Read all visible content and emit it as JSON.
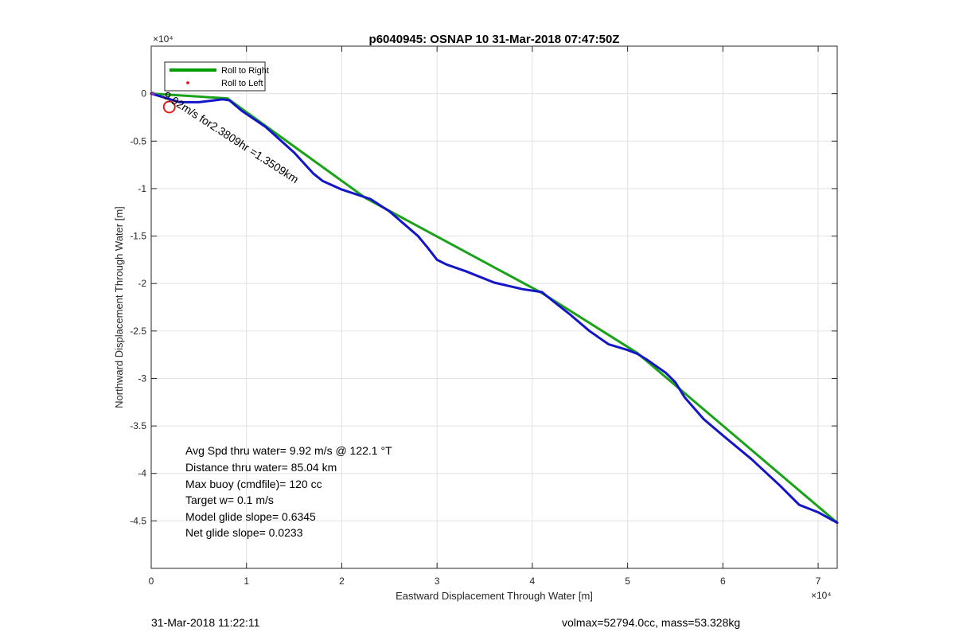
{
  "chart_data": {
    "type": "line",
    "title": "p6040945: OSNAP 10 31-Mar-2018 07:47:50Z",
    "xlabel": "Eastward Displacement Through Water [m]",
    "ylabel": "Northward Displacement Through Water [m]",
    "x_exponent_label": "×10⁴",
    "y_exponent_label": "×10⁴",
    "xlim": [
      0,
      72000
    ],
    "ylim": [
      -50000,
      5000
    ],
    "xticks": [
      0,
      10000,
      20000,
      30000,
      40000,
      50000,
      60000,
      70000
    ],
    "xtick_labels": [
      "0",
      "1",
      "2",
      "3",
      "4",
      "5",
      "6",
      "7"
    ],
    "yticks": [
      0,
      -5000,
      -10000,
      -15000,
      -20000,
      -25000,
      -30000,
      -35000,
      -40000,
      -45000
    ],
    "ytick_labels": [
      "0",
      "-0.5",
      "-1",
      "-1.5",
      "-2",
      "-2.5",
      "-3",
      "-3.5",
      "-4",
      "-4.5"
    ],
    "grid": true,
    "legend_position": "top-left",
    "legend": [
      {
        "label": "Roll to Right",
        "color": "#00a000",
        "style": "line"
      },
      {
        "label": "Roll to Left",
        "color": "#e00000",
        "style": "dot"
      }
    ],
    "series": [
      {
        "name": "Roll to Right",
        "color": "#1aa31a",
        "x": [
          0,
          8000,
          22500,
          41000,
          51000,
          72000
        ],
        "y": [
          0,
          -500,
          -11000,
          -21000,
          -27300,
          -45200
        ]
      },
      {
        "color": "#1515c8",
        "x": [
          0,
          3000,
          5000,
          7500,
          8200,
          9500,
          12000,
          15000,
          17000,
          18000,
          20000,
          23000,
          25000,
          28000,
          29000,
          30000,
          31000,
          33000,
          36000,
          39000,
          41000,
          42000,
          44000,
          46000,
          47000,
          48000,
          50000,
          51000,
          52000,
          54000,
          55000,
          56000,
          58000,
          60000,
          63000,
          66000,
          68000,
          70000,
          72000
        ],
        "y": [
          0,
          -900,
          -900,
          -600,
          -700,
          -1800,
          -3500,
          -6200,
          -8400,
          -9200,
          -10100,
          -11100,
          -12400,
          -15000,
          -16200,
          -17500,
          -18000,
          -18700,
          -19900,
          -20600,
          -20900,
          -21700,
          -23300,
          -25000,
          -25700,
          -26400,
          -27000,
          -27400,
          -28000,
          -29400,
          -30400,
          -32000,
          -34300,
          -36000,
          -38500,
          -41300,
          -43300,
          -44100,
          -45200
        ]
      }
    ],
    "markers": [
      {
        "type": "circle",
        "x": 1900,
        "y": -1400,
        "color": "#e02020"
      }
    ],
    "overlay_label": {
      "text": "9.92m/s for2.3809hr =1.3509km",
      "x": 1200,
      "y": -400,
      "rotation_deg": 33
    },
    "annotations": [
      "Avg Spd thru water=  9.92 m/s @ 122.1 °T",
      "Distance thru water= 85.04 km",
      "Max buoy (cmdfile)= 120 cc",
      "Target w= 0.1 m/s",
      "Model glide slope= 0.6345",
      "Net glide slope= 0.0233"
    ]
  },
  "footer": {
    "timestamp": "31-Mar-2018 11:22:11",
    "info": "volmax=52794.0cc, mass=53.328kg"
  }
}
